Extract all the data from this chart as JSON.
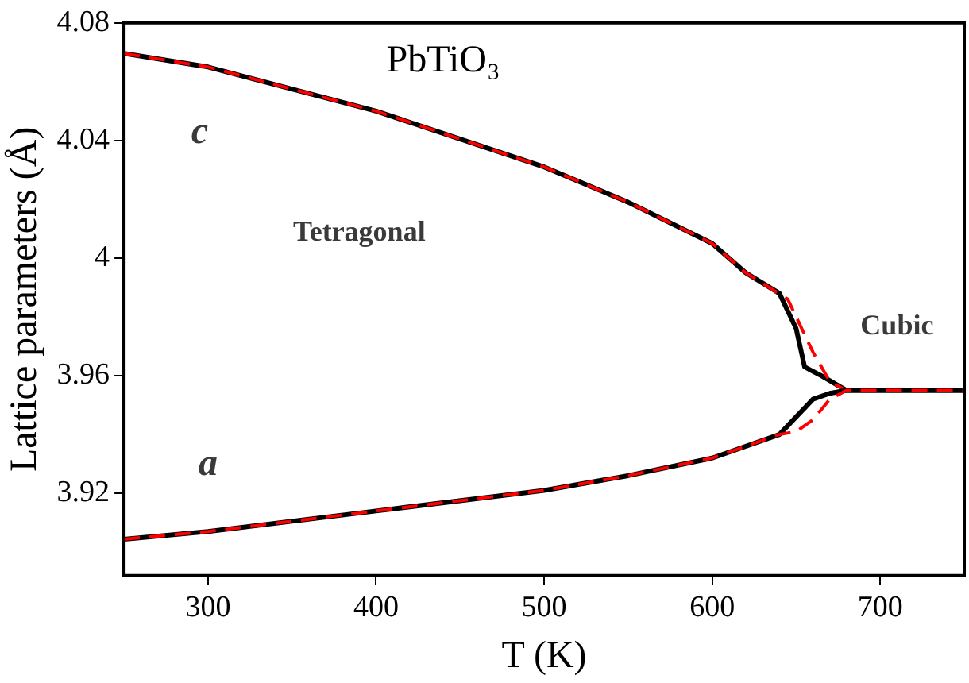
{
  "chart_data": {
    "type": "line",
    "xlabel": "T (K)",
    "ylabel": "Lattice parameters (Å)",
    "xlim": [
      250,
      750
    ],
    "xticks": [
      300,
      400,
      500,
      600,
      700
    ],
    "ylim": [
      3.892,
      4.08
    ],
    "yticks": [
      3.92,
      3.96,
      4,
      4.04,
      4.08
    ],
    "grid": false,
    "legend": false,
    "marker": "none",
    "series": [
      {
        "color": "#000000",
        "line_style": "solid",
        "x": [
          250,
          300,
          400,
          500,
          550,
          600,
          620,
          640,
          650,
          655,
          665,
          680,
          750
        ],
        "values": [
          4.0696,
          4.065,
          4.05,
          4.031,
          4.019,
          4.005,
          3.995,
          3.988,
          3.976,
          3.963,
          3.96,
          3.955,
          3.955
        ]
      },
      {
        "color": "#ff0000",
        "line_style": "dashed",
        "x": [
          250,
          300,
          400,
          500,
          550,
          600,
          620,
          645,
          660,
          670,
          680,
          750
        ],
        "values": [
          4.0696,
          4.065,
          4.05,
          4.031,
          4.019,
          4.005,
          3.995,
          3.986,
          3.968,
          3.958,
          3.955,
          3.955
        ]
      },
      {
        "color": "#000000",
        "line_style": "solid",
        "x": [
          250,
          300,
          400,
          500,
          550,
          600,
          640,
          650,
          660,
          670,
          680,
          750
        ],
        "values": [
          3.9044,
          3.907,
          3.914,
          3.921,
          3.926,
          3.932,
          3.94,
          3.946,
          3.952,
          3.954,
          3.955,
          3.955
        ]
      },
      {
        "color": "#ff0000",
        "line_style": "dashed",
        "x": [
          250,
          300,
          400,
          500,
          550,
          600,
          640,
          650,
          660,
          670,
          680,
          750
        ],
        "values": [
          3.9044,
          3.907,
          3.914,
          3.921,
          3.926,
          3.932,
          3.94,
          3.941,
          3.945,
          3.952,
          3.955,
          3.955
        ]
      }
    ],
    "annotations": [
      "PbTiO₃",
      "c",
      "Tetragonal",
      "Cubic",
      "a"
    ]
  }
}
